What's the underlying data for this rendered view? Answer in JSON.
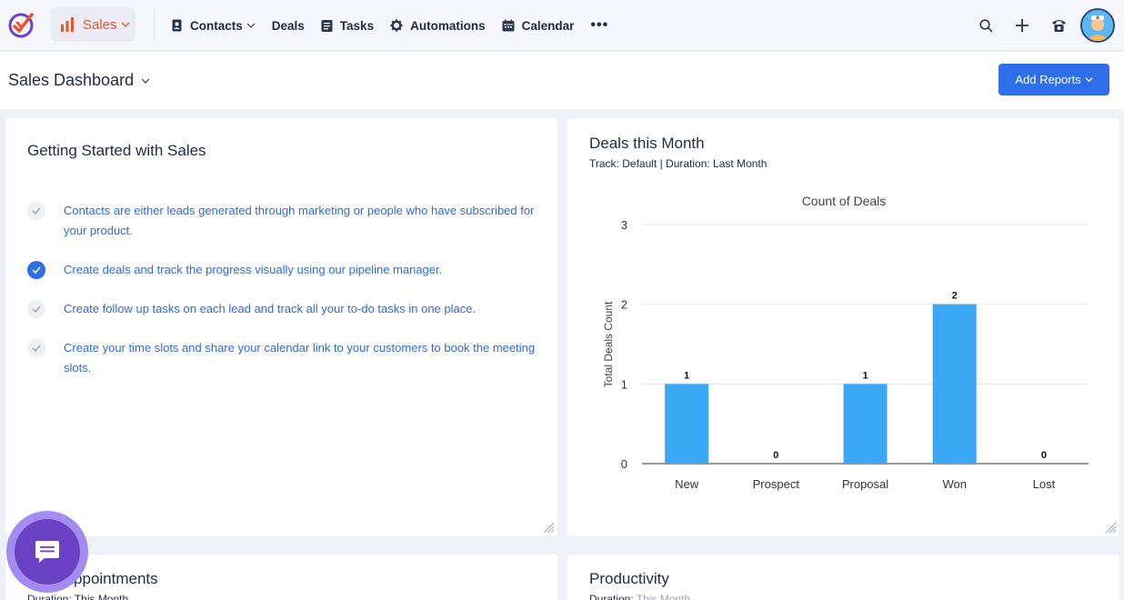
{
  "topbar": {
    "module_label": "Sales",
    "nav": [
      {
        "label": "Contacts",
        "icon": "contacts-icon",
        "has_dropdown": true
      },
      {
        "label": "Deals",
        "icon": "",
        "has_dropdown": false
      },
      {
        "label": "Tasks",
        "icon": "tasks-icon",
        "has_dropdown": false
      },
      {
        "label": "Automations",
        "icon": "gear-icon",
        "has_dropdown": false
      },
      {
        "label": "Calendar",
        "icon": "calendar-icon",
        "has_dropdown": false
      }
    ],
    "more_label": "•••",
    "right_icons": [
      "search-icon",
      "plus-icon",
      "phone-icon"
    ]
  },
  "header": {
    "page_title": "Sales Dashboard",
    "add_reports_label": "Add Reports"
  },
  "getting_started": {
    "title": "Getting Started with Sales",
    "steps": [
      {
        "text": "Contacts are either leads generated through marketing or people who have subscribed for your product.",
        "done": false
      },
      {
        "text": "Create deals and track the progress visually using our pipeline manager.",
        "done": true
      },
      {
        "text": "Create follow up tasks on each lead and track all your to-do tasks in one place.",
        "done": false
      },
      {
        "text": "Create your time slots and share your calendar link to your customers to book the meeting slots.",
        "done": false
      }
    ]
  },
  "deals_card": {
    "title": "Deals this Month",
    "subtitle": "Track: Default | Duration: Last Month"
  },
  "chart_data": {
    "type": "bar",
    "title": "Count of Deals",
    "xlabel": "",
    "ylabel": "Total Deals Count",
    "categories": [
      "New",
      "Prospect",
      "Proposal",
      "Won",
      "Lost"
    ],
    "values": [
      1,
      0,
      1,
      2,
      0
    ],
    "ylim": [
      0,
      3
    ],
    "yticks": [
      0,
      1,
      2,
      3
    ],
    "grid": true,
    "bar_color": "#3aa8f5"
  },
  "appointments_card": {
    "title": "Total Appointments",
    "subtitle": "Duration: This Month"
  },
  "productivity_card": {
    "title": "Productivity",
    "subtitle_prefix": "Duration:",
    "subtitle_value": "This Month"
  },
  "colors": {
    "accent": "#2e6ee6",
    "module": "#e4572e",
    "link": "#3069d9",
    "chat": "#6b41c6"
  }
}
